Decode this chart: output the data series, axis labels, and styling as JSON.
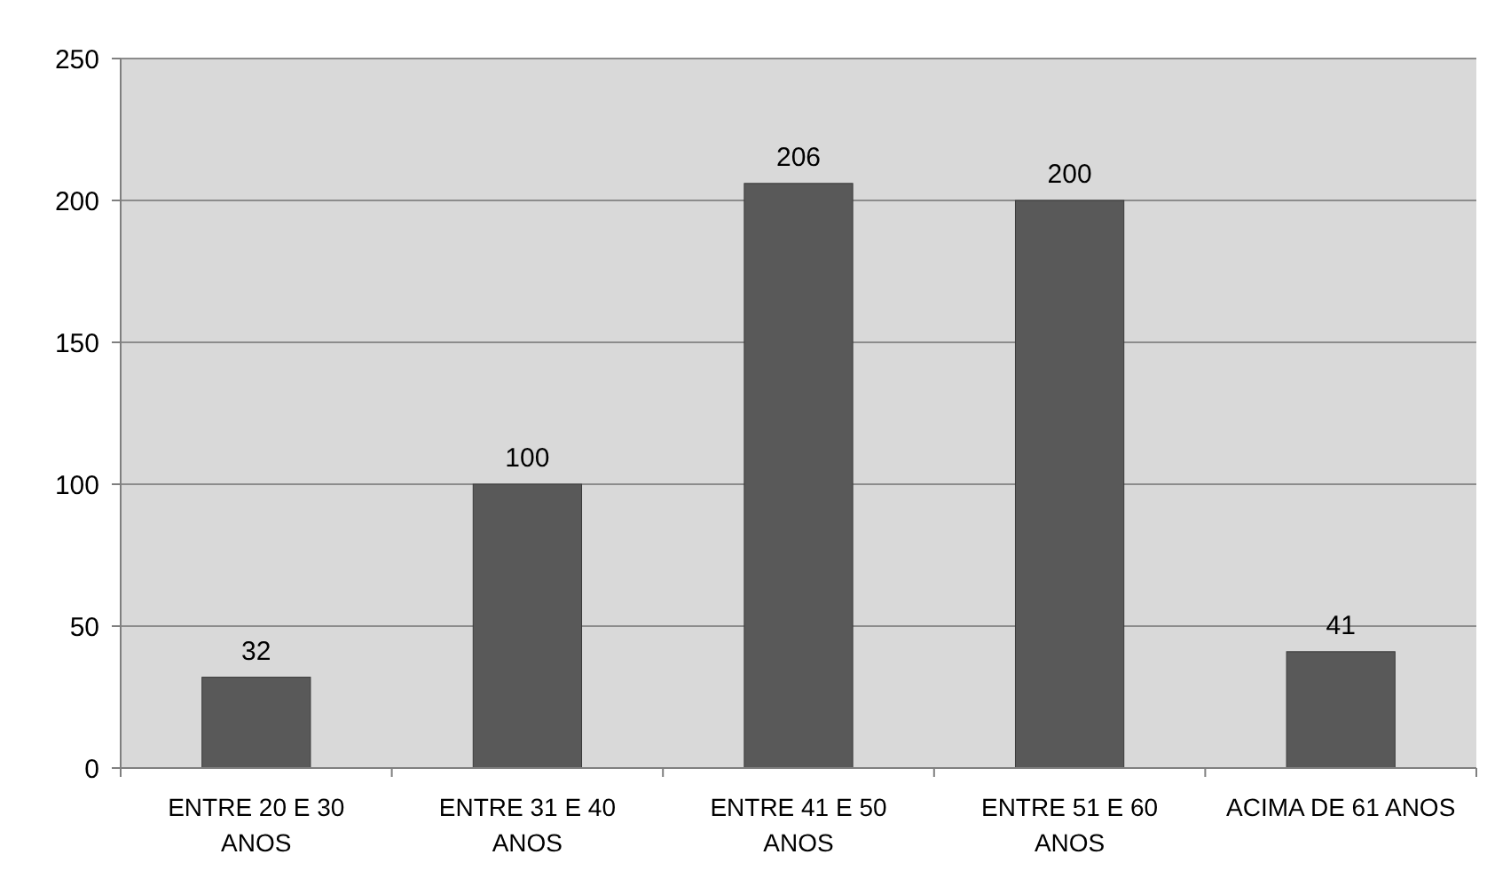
{
  "chart_data": {
    "type": "bar",
    "categories": [
      "ENTRE 20 E 30 ANOS",
      "ENTRE 31 E 40 ANOS",
      "ENTRE 41 E 50 ANOS",
      "ENTRE 51 E 60 ANOS",
      "ACIMA DE 61 ANOS"
    ],
    "values": [
      32,
      100,
      206,
      200,
      41
    ],
    "color": "#595959",
    "ylim": [
      0,
      250
    ],
    "yticks": [
      0,
      50,
      100,
      150,
      200,
      250
    ],
    "grid": "y",
    "data_labels": true
  }
}
